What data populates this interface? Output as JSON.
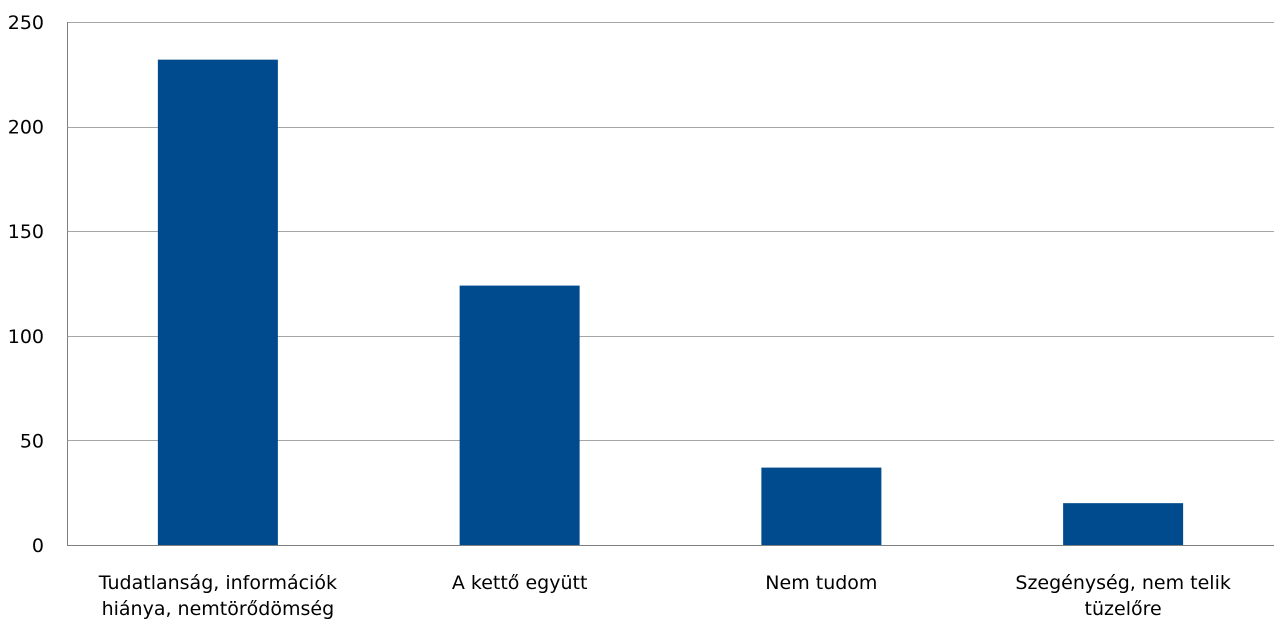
{
  "chart_data": {
    "type": "bar",
    "categories": [
      [
        "Tudatlanság, információk",
        "hiánya, nemtörődömség"
      ],
      [
        "A kettő együtt"
      ],
      [
        "Nem tudom"
      ],
      [
        "Szegénység, nem telik",
        "tüzelőre"
      ]
    ],
    "values": [
      232,
      124,
      37,
      20
    ],
    "ylim": [
      0,
      250
    ],
    "yticks": [
      0,
      50,
      100,
      150,
      200,
      250
    ],
    "grid": true,
    "legend": "none",
    "title": "",
    "xlabel": "",
    "ylabel": "",
    "colors": {
      "bar": "#004B8D",
      "grid": "#A6A6A6",
      "axis": "#808080"
    }
  }
}
